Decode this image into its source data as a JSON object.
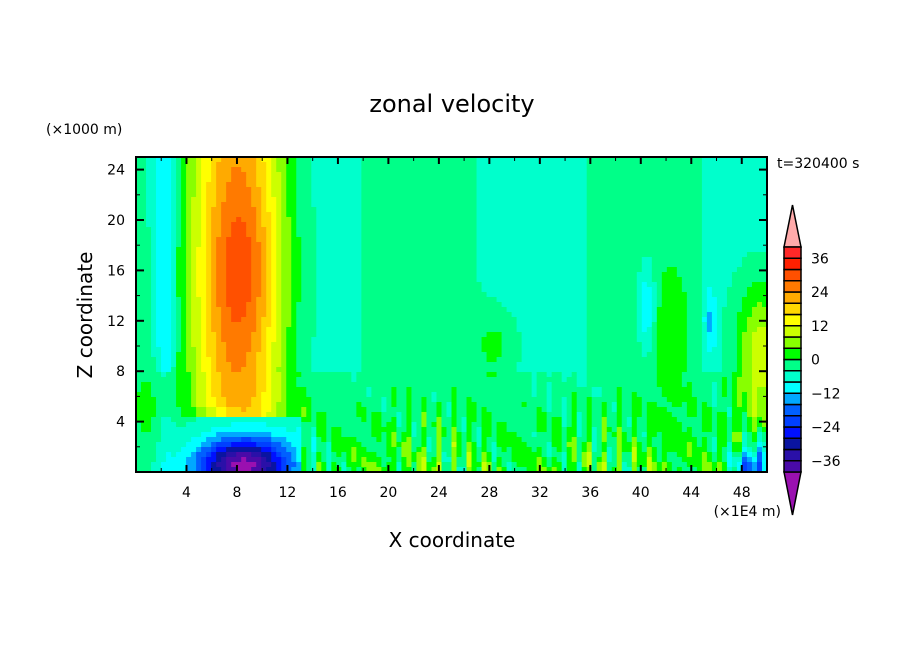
{
  "chart_data": {
    "type": "heatmap",
    "title": "zonal velocity",
    "xlabel": "X coordinate",
    "ylabel": "Z coordinate",
    "x_units": "(x1E4 m)",
    "y_units": "(x1000 m)",
    "x_units_display": "(×1E4 m)",
    "y_units_display": "(×1000 m)",
    "time_label": "t=320400 s",
    "xlim": [
      0,
      50
    ],
    "ylim": [
      0,
      25
    ],
    "xticks": [
      4,
      8,
      12,
      16,
      20,
      24,
      28,
      32,
      36,
      40,
      44,
      48
    ],
    "xtick_labels": [
      "4",
      "8",
      "12",
      "16",
      "20",
      "24",
      "28",
      "32",
      "36",
      "40",
      "44",
      "48"
    ],
    "yticks": [
      4,
      8,
      12,
      16,
      20,
      24
    ],
    "ytick_labels": [
      "4",
      "8",
      "12",
      "16",
      "20",
      "24"
    ],
    "colorbar": {
      "levels": [
        -40,
        -36,
        -32,
        -28,
        -24,
        -20,
        -16,
        -12,
        -8,
        -4,
        0,
        4,
        8,
        12,
        16,
        20,
        24,
        28,
        32,
        36,
        40
      ],
      "labels": [
        {
          "value": 36,
          "text": "36"
        },
        {
          "value": 24,
          "text": "24"
        },
        {
          "value": 12,
          "text": "12"
        },
        {
          "value": 0,
          "text": "0"
        },
        {
          "value": -12,
          "text": "−12"
        },
        {
          "value": -24,
          "text": "−24"
        },
        {
          "value": -36,
          "text": "−36"
        }
      ],
      "colors": [
        "#4a0aa8",
        "#2a10a8",
        "#0a14a0",
        "#0010ff",
        "#0040ff",
        "#0060ff",
        "#00a8ff",
        "#00ffff",
        "#00ffcc",
        "#00ff88",
        "#00ff00",
        "#88ff00",
        "#ccff00",
        "#ffff00",
        "#ffd800",
        "#ffaa00",
        "#ff7a00",
        "#ff5000",
        "#ff2000",
        "#ff2828"
      ],
      "over_color": "#ffaaaa",
      "under_color": "#9a10b0"
    },
    "features": [
      {
        "description_region": "x 5-13, z 5-25",
        "value_range": [
          12,
          32
        ]
      },
      {
        "description_region": "x 5-12, z 0-3",
        "value_range": [
          -36,
          -20
        ]
      },
      {
        "description_region": "x 13-50, z 8-25",
        "value_range": [
          -8,
          0
        ]
      },
      {
        "description_region": "x 13-50, z 0-8",
        "value_range": [
          0,
          16
        ]
      }
    ]
  }
}
